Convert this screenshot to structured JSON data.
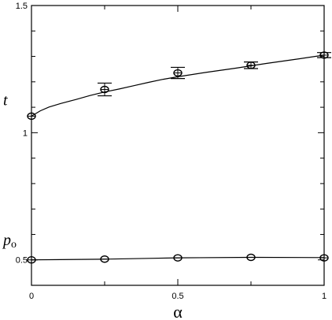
{
  "chart_data": {
    "type": "scatter",
    "title": "",
    "xlabel": "α",
    "xlim": [
      0,
      1
    ],
    "ylim": [
      0.4,
      1.5
    ],
    "x_ticks": [
      {
        "value": 0,
        "label": "0"
      },
      {
        "value": 0.5,
        "label": "0.5"
      },
      {
        "value": 1,
        "label": "1"
      }
    ],
    "y_ticks": [
      {
        "value": 0.5,
        "label": "0.5"
      },
      {
        "value": 1,
        "label": "1"
      },
      {
        "value": 1.5,
        "label": "1.5"
      }
    ],
    "grid": false,
    "series": [
      {
        "name": "t",
        "label_value": 1.13,
        "points": [
          {
            "x": 0,
            "y": 1.065,
            "err": 0
          },
          {
            "x": 0.25,
            "y": 1.17,
            "err": 0.025
          },
          {
            "x": 0.5,
            "y": 1.235,
            "err": 0.022
          },
          {
            "x": 0.75,
            "y": 1.265,
            "err": 0.013
          },
          {
            "x": 1,
            "y": 1.305,
            "err": 0.01
          }
        ],
        "curve": [
          [
            0,
            1.065
          ],
          [
            0.01,
            1.072
          ],
          [
            0.03,
            1.086
          ],
          [
            0.06,
            1.101
          ],
          [
            0.1,
            1.115
          ],
          [
            0.15,
            1.13
          ],
          [
            0.2,
            1.146
          ],
          [
            0.25,
            1.16
          ],
          [
            0.3,
            1.172
          ],
          [
            0.35,
            1.185
          ],
          [
            0.4,
            1.198
          ],
          [
            0.45,
            1.21
          ],
          [
            0.5,
            1.22
          ],
          [
            0.6,
            1.238
          ],
          [
            0.7,
            1.254
          ],
          [
            0.8,
            1.272
          ],
          [
            0.9,
            1.288
          ],
          [
            1.0,
            1.305
          ]
        ]
      },
      {
        "name": "p_o",
        "label_value": 0.57,
        "points": [
          {
            "x": 0,
            "y": 0.5,
            "err": 0
          },
          {
            "x": 0.25,
            "y": 0.503,
            "err": 0
          },
          {
            "x": 0.5,
            "y": 0.508,
            "err": 0
          },
          {
            "x": 0.75,
            "y": 0.51,
            "err": 0
          },
          {
            "x": 1,
            "y": 0.508,
            "err": 0
          }
        ],
        "curve": [
          [
            0,
            0.5
          ],
          [
            0.1,
            0.501
          ],
          [
            0.25,
            0.503
          ],
          [
            0.4,
            0.506
          ],
          [
            0.5,
            0.508
          ],
          [
            0.75,
            0.51
          ],
          [
            1.0,
            0.509
          ]
        ]
      }
    ]
  }
}
